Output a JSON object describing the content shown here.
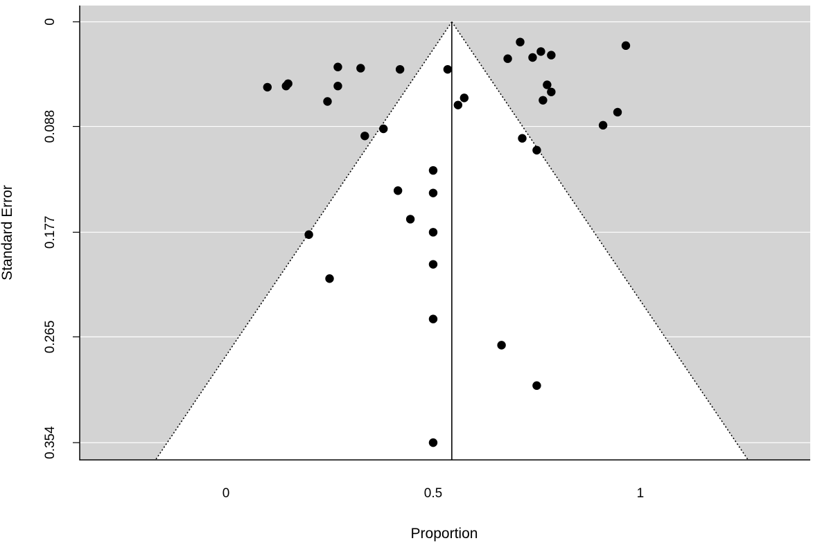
{
  "chart_data": {
    "type": "scatter",
    "title": "",
    "xlabel": "Proportion",
    "ylabel": "Standard Error",
    "xlim": [
      -0.353,
      1.41
    ],
    "ylim": [
      0.3685,
      -0.0137
    ],
    "y_reversed": true,
    "grid": true,
    "center_estimate": 0.545,
    "funnel": {
      "apex": [
        0.545,
        0
      ],
      "left_base": [
        -0.17,
        0.3685
      ],
      "right_base": [
        1.26,
        0.3685
      ]
    },
    "x_ticks": [
      {
        "value": 0,
        "label": "0"
      },
      {
        "value": 0.5,
        "label": "0.5"
      },
      {
        "value": 1,
        "label": "1"
      }
    ],
    "y_ticks": [
      {
        "value": 0,
        "label": "0"
      },
      {
        "value": 0.088,
        "label": "0.088"
      },
      {
        "value": 0.177,
        "label": "0.177"
      },
      {
        "value": 0.265,
        "label": "0.265"
      },
      {
        "value": 0.354,
        "label": "0.354"
      }
    ],
    "points": [
      {
        "x": 0.1,
        "y": 0.055
      },
      {
        "x": 0.145,
        "y": 0.054
      },
      {
        "x": 0.15,
        "y": 0.052
      },
      {
        "x": 0.27,
        "y": 0.038
      },
      {
        "x": 0.27,
        "y": 0.054
      },
      {
        "x": 0.245,
        "y": 0.067
      },
      {
        "x": 0.325,
        "y": 0.039
      },
      {
        "x": 0.42,
        "y": 0.04
      },
      {
        "x": 0.535,
        "y": 0.04
      },
      {
        "x": 0.335,
        "y": 0.096
      },
      {
        "x": 0.38,
        "y": 0.09
      },
      {
        "x": 0.56,
        "y": 0.07
      },
      {
        "x": 0.575,
        "y": 0.064
      },
      {
        "x": 0.68,
        "y": 0.031
      },
      {
        "x": 0.71,
        "y": 0.017
      },
      {
        "x": 0.74,
        "y": 0.03
      },
      {
        "x": 0.76,
        "y": 0.025
      },
      {
        "x": 0.785,
        "y": 0.028
      },
      {
        "x": 0.965,
        "y": 0.02
      },
      {
        "x": 0.775,
        "y": 0.053
      },
      {
        "x": 0.785,
        "y": 0.059
      },
      {
        "x": 0.765,
        "y": 0.066
      },
      {
        "x": 0.945,
        "y": 0.076
      },
      {
        "x": 0.91,
        "y": 0.087
      },
      {
        "x": 0.715,
        "y": 0.098
      },
      {
        "x": 0.75,
        "y": 0.108
      },
      {
        "x": 0.5,
        "y": 0.125
      },
      {
        "x": 0.5,
        "y": 0.144
      },
      {
        "x": 0.415,
        "y": 0.142
      },
      {
        "x": 0.445,
        "y": 0.166
      },
      {
        "x": 0.5,
        "y": 0.177
      },
      {
        "x": 0.2,
        "y": 0.179
      },
      {
        "x": 0.5,
        "y": 0.204
      },
      {
        "x": 0.25,
        "y": 0.216
      },
      {
        "x": 0.5,
        "y": 0.25
      },
      {
        "x": 0.665,
        "y": 0.272
      },
      {
        "x": 0.75,
        "y": 0.306
      },
      {
        "x": 0.5,
        "y": 0.354
      }
    ]
  }
}
